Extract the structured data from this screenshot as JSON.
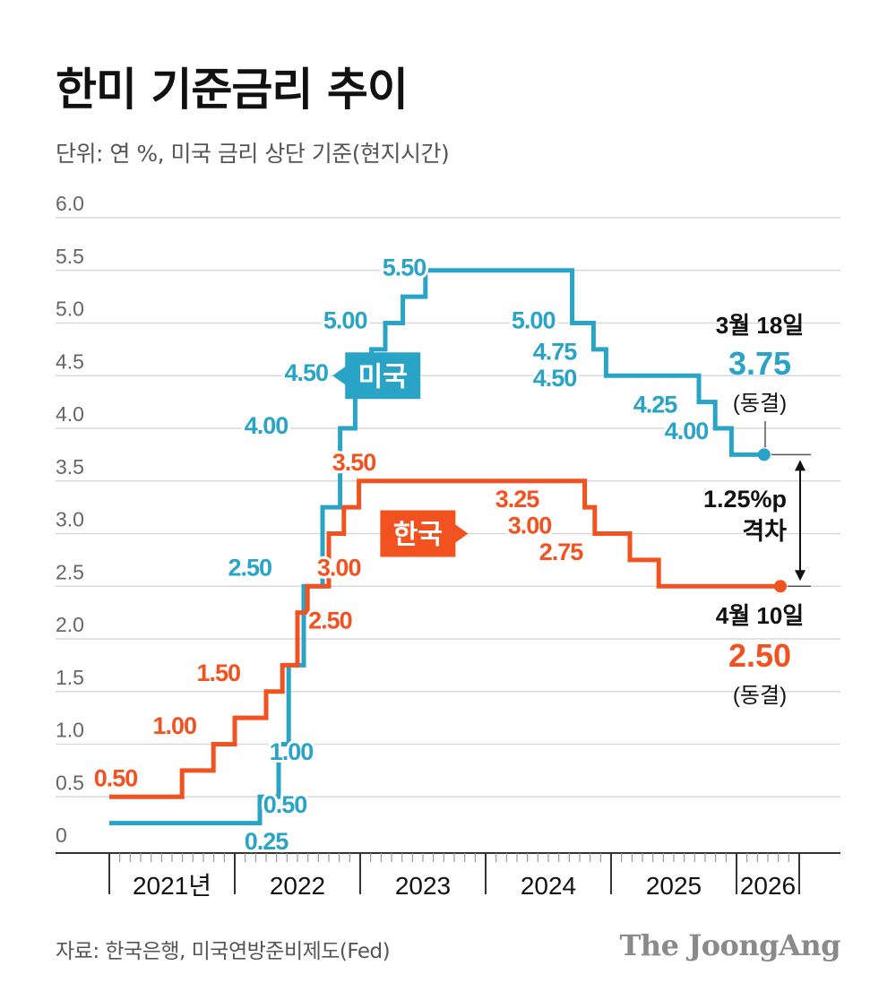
{
  "title": "한미 기준금리 추이",
  "subtitle": "단위: 연 %, 미국 금리 상단 기준(현지시간)",
  "source": "자료: 한국은행, 미국연방준비제도(Fed)",
  "brand": "The JoongAng",
  "colors": {
    "us": "#2aa4c6",
    "korea": "#f2521f",
    "grid": "#d9d9d9",
    "axis": "#333333",
    "text": "#111111",
    "muted": "#666666"
  },
  "chart_data": {
    "type": "line",
    "step": true,
    "ylim": [
      0,
      6
    ],
    "xlim": [
      2021.0,
      2026.0
    ],
    "yticks": [
      0,
      0.5,
      1.0,
      1.5,
      2.0,
      2.5,
      3.0,
      3.5,
      4.0,
      4.5,
      5.0,
      5.5,
      6.0
    ],
    "ytick_labels": [
      "0",
      "0.5",
      "1.0",
      "1.5",
      "2.0",
      "2.5",
      "3.0",
      "3.5",
      "4.0",
      "4.5",
      "5.0",
      "5.5",
      "6.0"
    ],
    "x_categories": [
      "2021년",
      "2022",
      "2023",
      "2024",
      "2025",
      "2026"
    ],
    "grid": true,
    "series": [
      {
        "name": "미국",
        "color_key": "us",
        "points": [
          [
            2021.0,
            0.25
          ],
          [
            2022.2,
            0.25
          ],
          [
            2022.2,
            0.5
          ],
          [
            2022.35,
            0.5
          ],
          [
            2022.35,
            1.0
          ],
          [
            2022.43,
            1.0
          ],
          [
            2022.43,
            1.75
          ],
          [
            2022.55,
            1.75
          ],
          [
            2022.55,
            2.5
          ],
          [
            2022.7,
            2.5
          ],
          [
            2022.7,
            3.25
          ],
          [
            2022.84,
            3.25
          ],
          [
            2022.84,
            4.0
          ],
          [
            2022.96,
            4.0
          ],
          [
            2022.96,
            4.5
          ],
          [
            2023.09,
            4.5
          ],
          [
            2023.09,
            4.75
          ],
          [
            2023.2,
            4.75
          ],
          [
            2023.2,
            5.0
          ],
          [
            2023.34,
            5.0
          ],
          [
            2023.34,
            5.25
          ],
          [
            2023.52,
            5.25
          ],
          [
            2023.52,
            5.5
          ],
          [
            2024.69,
            5.5
          ],
          [
            2024.69,
            5.0
          ],
          [
            2024.86,
            5.0
          ],
          [
            2024.86,
            4.75
          ],
          [
            2024.96,
            4.75
          ],
          [
            2024.96,
            4.5
          ],
          [
            2025.7,
            4.5
          ],
          [
            2025.7,
            4.25
          ],
          [
            2025.83,
            4.25
          ],
          [
            2025.83,
            4.0
          ],
          [
            2025.96,
            4.0
          ],
          [
            2025.96,
            3.75
          ],
          [
            2026.22,
            3.75
          ]
        ],
        "end_marker": [
          2026.22,
          3.75
        ]
      },
      {
        "name": "한국",
        "color_key": "korea",
        "points": [
          [
            2021.0,
            0.5
          ],
          [
            2021.58,
            0.5
          ],
          [
            2021.58,
            0.75
          ],
          [
            2021.83,
            0.75
          ],
          [
            2021.83,
            1.0
          ],
          [
            2022.0,
            1.0
          ],
          [
            2022.0,
            1.25
          ],
          [
            2022.25,
            1.25
          ],
          [
            2022.25,
            1.5
          ],
          [
            2022.38,
            1.5
          ],
          [
            2022.38,
            1.75
          ],
          [
            2022.5,
            1.75
          ],
          [
            2022.5,
            2.25
          ],
          [
            2022.58,
            2.25
          ],
          [
            2022.58,
            2.5
          ],
          [
            2022.75,
            2.5
          ],
          [
            2022.75,
            3.0
          ],
          [
            2022.87,
            3.0
          ],
          [
            2022.87,
            3.25
          ],
          [
            2022.99,
            3.25
          ],
          [
            2022.99,
            3.5
          ],
          [
            2024.79,
            3.5
          ],
          [
            2024.79,
            3.25
          ],
          [
            2024.87,
            3.25
          ],
          [
            2024.87,
            3.0
          ],
          [
            2025.15,
            3.0
          ],
          [
            2025.15,
            2.75
          ],
          [
            2025.38,
            2.75
          ],
          [
            2025.38,
            2.5
          ],
          [
            2026.35,
            2.5
          ]
        ],
        "end_marker": [
          2026.35,
          2.5
        ]
      }
    ],
    "data_labels": [
      {
        "text": "0.25",
        "x": 2022.25,
        "y": 0.0,
        "series": "미국"
      },
      {
        "text": "0.50",
        "x": 2022.4,
        "y": 0.35,
        "series": "미국"
      },
      {
        "text": "1.00",
        "x": 2022.45,
        "y": 0.85,
        "series": "미국"
      },
      {
        "text": "2.50",
        "x": 2022.12,
        "y": 2.6,
        "series": "미국"
      },
      {
        "text": "4.00",
        "x": 2022.25,
        "y": 3.95,
        "series": "미국"
      },
      {
        "text": "4.50",
        "x": 2022.57,
        "y": 4.45,
        "series": "미국"
      },
      {
        "text": "5.00",
        "x": 2022.88,
        "y": 4.95,
        "series": "미국"
      },
      {
        "text": "5.50",
        "x": 2023.35,
        "y": 5.45,
        "series": "미국"
      },
      {
        "text": "5.00",
        "x": 2024.38,
        "y": 4.95,
        "series": "미국"
      },
      {
        "text": "4.75",
        "x": 2024.55,
        "y": 4.65,
        "series": "미국"
      },
      {
        "text": "4.50",
        "x": 2024.55,
        "y": 4.4,
        "series": "미국"
      },
      {
        "text": "4.25",
        "x": 2025.35,
        "y": 4.15,
        "series": "미국"
      },
      {
        "text": "4.00",
        "x": 2025.6,
        "y": 3.9,
        "series": "미국"
      },
      {
        "text": "0.50",
        "x": 2021.05,
        "y": 0.6,
        "series": "한국"
      },
      {
        "text": "1.00",
        "x": 2021.52,
        "y": 1.1,
        "series": "한국"
      },
      {
        "text": "1.50",
        "x": 2021.87,
        "y": 1.6,
        "series": "한국"
      },
      {
        "text": "2.50",
        "x": 2022.76,
        "y": 2.1,
        "series": "한국"
      },
      {
        "text": "3.00",
        "x": 2022.83,
        "y": 2.6,
        "series": "한국"
      },
      {
        "text": "3.50",
        "x": 2022.95,
        "y": 3.6,
        "series": "한국"
      },
      {
        "text": "3.25",
        "x": 2024.25,
        "y": 3.25,
        "series": "한국"
      },
      {
        "text": "3.00",
        "x": 2024.35,
        "y": 3.0,
        "series": "한국"
      },
      {
        "text": "2.75",
        "x": 2024.6,
        "y": 2.75,
        "series": "한국"
      }
    ],
    "series_tags": [
      {
        "text": "미국",
        "color_key": "us",
        "x": 2023.18,
        "y": 4.5,
        "pointer": "left"
      },
      {
        "text": "한국",
        "color_key": "korea",
        "x": 2023.46,
        "y": 3.0,
        "pointer": "right"
      }
    ],
    "annotations": {
      "us_date": "3월 18일",
      "us_value": "3.75",
      "us_status": "(동결)",
      "korea_date": "4월 10일",
      "korea_value": "2.50",
      "korea_status": "(동결)",
      "gap_value": "1.25%p",
      "gap_label": "격차"
    }
  }
}
